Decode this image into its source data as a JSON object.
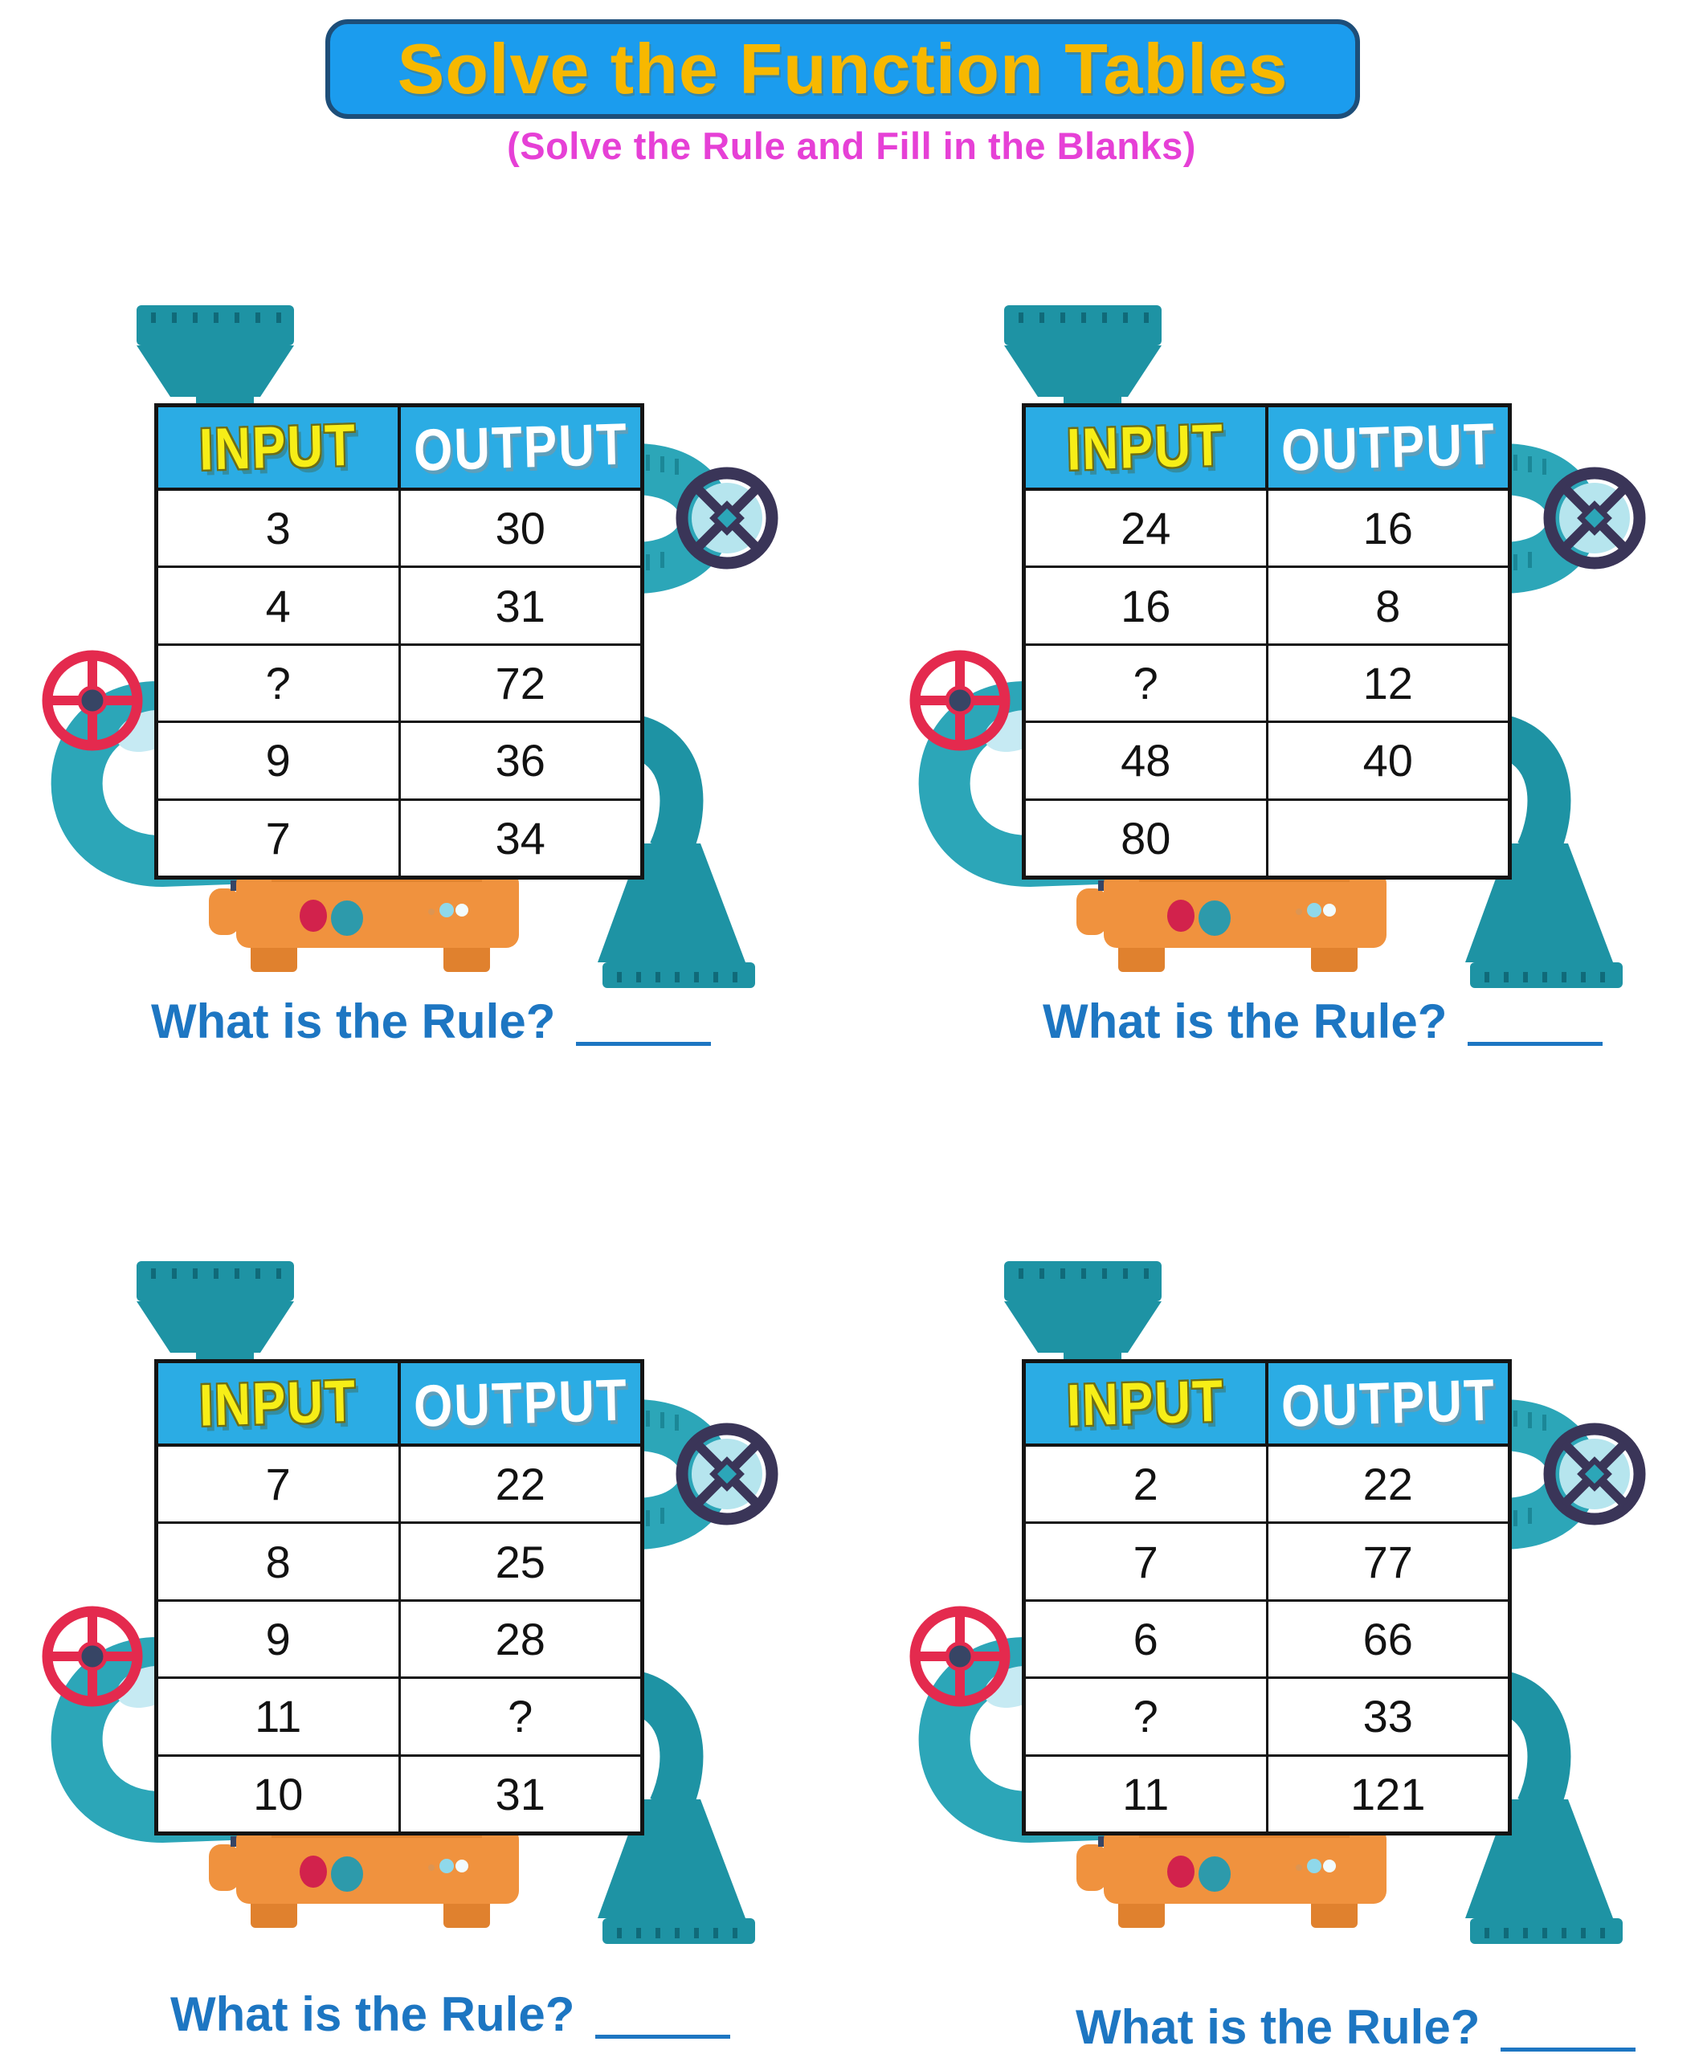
{
  "page": {
    "title": "Solve the Function Tables",
    "subtitle": "(Solve the Rule and Fill in the Blanks)",
    "rule_question": "What is the Rule?",
    "rule_answer_blank": ""
  },
  "headers": {
    "input": "INPUT",
    "output": "OUTPUT"
  },
  "tables": [
    {
      "name": "table-1",
      "rows": [
        [
          "3",
          "30"
        ],
        [
          "4",
          "31"
        ],
        [
          "?",
          "72"
        ],
        [
          "9",
          "36"
        ],
        [
          "7",
          "34"
        ]
      ]
    },
    {
      "name": "table-2",
      "rows": [
        [
          "24",
          "16"
        ],
        [
          "16",
          "8"
        ],
        [
          "?",
          "12"
        ],
        [
          "48",
          "40"
        ],
        [
          "80",
          ""
        ]
      ]
    },
    {
      "name": "table-3",
      "rows": [
        [
          "7",
          "22"
        ],
        [
          "8",
          "25"
        ],
        [
          "9",
          "28"
        ],
        [
          "11",
          "?"
        ],
        [
          "10",
          "31"
        ]
      ]
    },
    {
      "name": "table-4",
      "rows": [
        [
          "2",
          "22"
        ],
        [
          "7",
          "77"
        ],
        [
          "6",
          "66"
        ],
        [
          "?",
          "33"
        ],
        [
          "11",
          "121"
        ]
      ]
    }
  ],
  "colors": {
    "banner_bg": "#1B9CEE",
    "banner_border": "#1D4E79",
    "banner_text": "#F7B800",
    "subtitle_text": "#E640D6",
    "table_header_bg": "#2BACE4",
    "input_header_text": "#F7EE17",
    "output_header_text": "#FFFFFF",
    "table_border": "#141414",
    "cell_text": "#121212",
    "rule_text": "#1D76C2",
    "pipe_teal": "#2CA6B8",
    "funnel_teal": "#1E93A4",
    "flange_tick": "#0E6472",
    "highlight_blue": "#C6EAF3",
    "valve_red": "#E42A4E",
    "valve_dark": "#3A3558",
    "hub_navy": "#374565",
    "base_orange": "#F0923E",
    "base_orange_dark": "#E0812E",
    "button_red": "#D2224C",
    "button_teal": "#2D9AAB"
  }
}
